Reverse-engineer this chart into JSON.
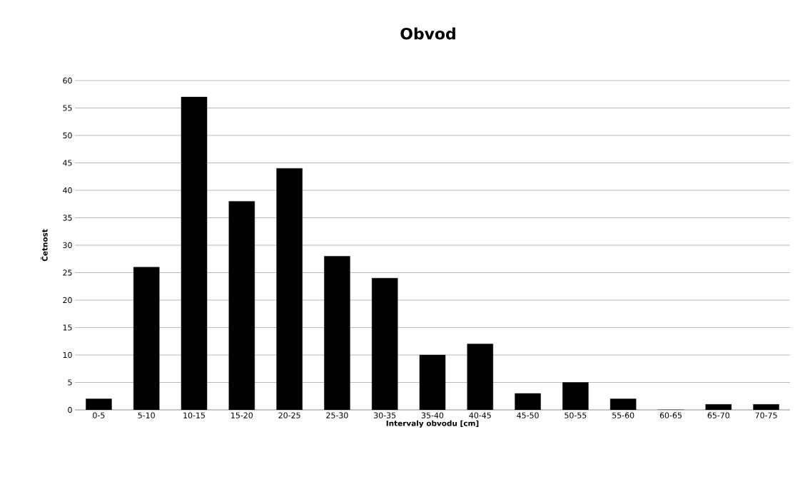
{
  "chart_data": {
    "type": "bar",
    "title": "Obvod",
    "xlabel": "Intervaly obvodu [cm]",
    "ylabel": "Četnost",
    "categories": [
      "0-5",
      "5-10",
      "10-15",
      "15-20",
      "20-25",
      "25-30",
      "30-35",
      "35-40",
      "40-45",
      "45-50",
      "50-55",
      "55-60",
      "60-65",
      "65-70",
      "70-75"
    ],
    "values": [
      2,
      26,
      57,
      38,
      44,
      28,
      24,
      10,
      12,
      3,
      5,
      2,
      0,
      1,
      1
    ],
    "color": "#000000",
    "ylim": [
      0,
      60
    ],
    "yticks": [
      0,
      5,
      10,
      15,
      20,
      25,
      30,
      35,
      40,
      45,
      50,
      55,
      60
    ],
    "grid": "y"
  }
}
